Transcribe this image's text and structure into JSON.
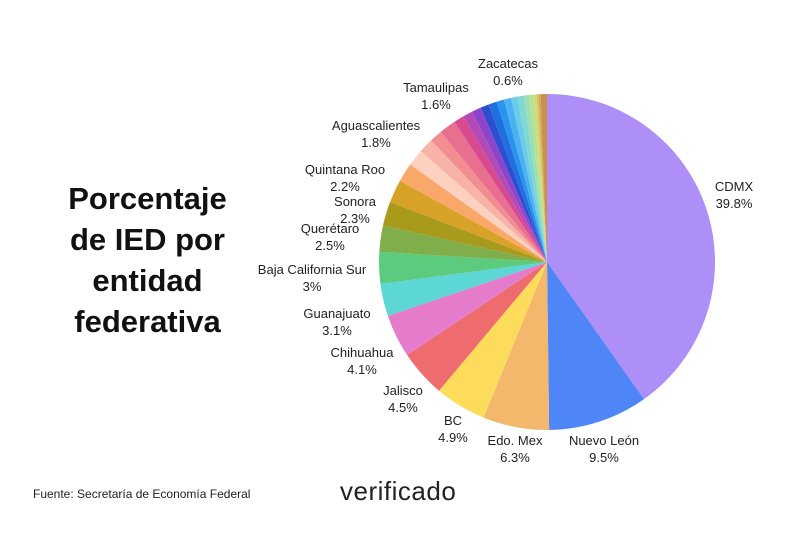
{
  "chart_data": {
    "type": "pie",
    "title": "Porcentaje de IED por entidad federativa",
    "source": "Fuente: Secretaría de Economía Federal",
    "logo": "verificado",
    "categories": [
      "CDMX",
      "Nuevo León",
      "Edo. Mex",
      "BC",
      "Jalisco",
      "Chihuahua",
      "Guanajuato",
      "Baja California Sur",
      "Querétaro",
      "Sonora",
      "Quintana Roo",
      "Aguascalientes",
      null,
      null,
      null,
      "Tamaulipas",
      null,
      null,
      null,
      null,
      null,
      null,
      null,
      null,
      null,
      null,
      null,
      null,
      null,
      null,
      "Zacatecas"
    ],
    "values": [
      39.8,
      9.5,
      6.3,
      4.9,
      4.5,
      4.1,
      3.1,
      3,
      2.5,
      2.3,
      2.2,
      1.8,
      1.6,
      1.4,
      1.2,
      1.6,
      1.0,
      0.9,
      0.9,
      0.8,
      0.8,
      0.7,
      0.7,
      0.6,
      0.6,
      0.5,
      0.4,
      0.3,
      0.2,
      0.2,
      0.6
    ],
    "value_labels": [
      "39.8%",
      "9.5%",
      "6.3%",
      "4.9%",
      "4.5%",
      "4.1%",
      "3.1%",
      "3%",
      "2.5%",
      "2.3%",
      "2.2%",
      "1.8%",
      null,
      null,
      null,
      "1.6%",
      null,
      null,
      null,
      null,
      null,
      null,
      null,
      null,
      null,
      null,
      null,
      null,
      null,
      null,
      "0.6%"
    ],
    "colors": [
      "#ae8ff7",
      "#4f86f7",
      "#f4b86d",
      "#fddc5c",
      "#ee6b6e",
      "#e57bcb",
      "#5dd6d6",
      "#5ccb7e",
      "#7fae4a",
      "#a89a1a",
      "#d8a127",
      "#f9a86a",
      "#fcd1c0",
      "#f7b3a8",
      "#f28d91",
      "#e86f8f",
      "#d84a8d",
      "#b24bb8",
      "#8d46c9",
      "#2c4fd0",
      "#1f6fe0",
      "#2a93ee",
      "#4bb2f2",
      "#6bcbe8",
      "#7fd8d2",
      "#9be0b5",
      "#b8e28f",
      "#cfdc7a",
      "#d6c66a",
      "#d1a95a",
      "#c89048"
    ]
  }
}
